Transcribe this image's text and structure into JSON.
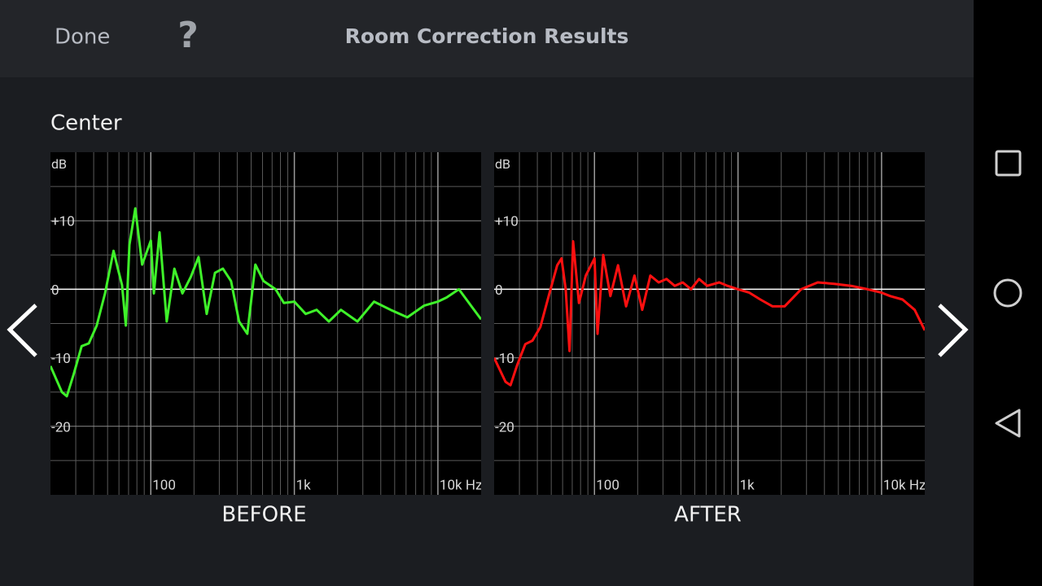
{
  "header": {
    "done": "Done",
    "help": "?",
    "title": "Room Correction Results"
  },
  "channel": "Center",
  "chart_data": [
    {
      "type": "line",
      "title": "BEFORE",
      "y_label": "dB",
      "color": "#3ff22a",
      "log_x": true,
      "xlim": [
        20,
        20000
      ],
      "ylim": [
        -30,
        20
      ],
      "xticks": [
        100,
        {
          "value": 1000,
          "label": "1k"
        },
        {
          "value": 10000,
          "label": "10k Hz"
        }
      ],
      "xminor": [
        30,
        40,
        50,
        60,
        70,
        80,
        90,
        200,
        300,
        400,
        500,
        600,
        700,
        800,
        900,
        2000,
        3000,
        4000,
        5000,
        6000,
        7000,
        8000,
        9000
      ],
      "yticks": [
        {
          "value": 10,
          "label": "+10"
        },
        0,
        -10,
        -20
      ],
      "yminor": [
        15,
        5,
        -5,
        -15,
        -25
      ],
      "x": [
        20,
        24,
        26,
        29,
        33,
        37,
        42,
        48,
        55,
        59,
        63,
        67,
        71,
        78,
        87,
        100,
        105,
        115,
        129,
        146,
        166,
        190,
        215,
        245,
        280,
        318,
        362,
        412,
        470,
        535,
        610,
        740,
        845,
        1000,
        1200,
        1430,
        1740,
        2110,
        2750,
        3590,
        4690,
        6130,
        8000,
        10000,
        11500,
        14000,
        17000,
        20000
      ],
      "values": [
        -11.2,
        -15,
        -15.6,
        -12.4,
        -8.3,
        -7.9,
        -5.3,
        -0.6,
        5.6,
        3,
        0.6,
        -5.3,
        6.5,
        11.8,
        3.6,
        7.1,
        -0.6,
        8.3,
        -4.7,
        3,
        -0.6,
        1.8,
        4.7,
        -3.6,
        2.4,
        3,
        1.2,
        -4.7,
        -6.5,
        3.6,
        1.2,
        0,
        -2,
        -1.8,
        -3.6,
        -3,
        -4.7,
        -3,
        -4.7,
        -1.8,
        -3,
        -4.1,
        -2.4,
        -1.8,
        -1.2,
        0,
        -2.4,
        -4.4
      ]
    },
    {
      "type": "line",
      "title": "AFTER",
      "y_label": "dB",
      "color": "#ff1010",
      "log_x": true,
      "xlim": [
        20,
        20000
      ],
      "ylim": [
        -30,
        20
      ],
      "xticks": [
        100,
        {
          "value": 1000,
          "label": "1k"
        },
        {
          "value": 10000,
          "label": "10k Hz"
        }
      ],
      "xminor": [
        30,
        40,
        50,
        60,
        70,
        80,
        90,
        200,
        300,
        400,
        500,
        600,
        700,
        800,
        900,
        2000,
        3000,
        4000,
        5000,
        6000,
        7000,
        8000,
        9000
      ],
      "yticks": [
        {
          "value": 10,
          "label": "+10"
        },
        0,
        -10,
        -20
      ],
      "yminor": [
        15,
        5,
        -5,
        -15,
        -25
      ],
      "x": [
        20,
        24,
        26,
        29,
        33,
        37,
        42,
        48,
        55,
        59,
        63,
        67,
        71,
        78,
        87,
        100,
        105,
        115,
        129,
        146,
        166,
        190,
        215,
        245,
        280,
        318,
        362,
        412,
        470,
        535,
        610,
        740,
        845,
        1000,
        1200,
        1430,
        1740,
        2110,
        2750,
        3590,
        4690,
        6130,
        8000,
        10000,
        11500,
        14000,
        17000,
        20000
      ],
      "values": [
        -10,
        -13.5,
        -14,
        -11,
        -8,
        -7.5,
        -5.5,
        -1,
        3.5,
        4.5,
        0,
        -9,
        7,
        -2,
        2,
        4.5,
        -6.5,
        5,
        -1,
        3.5,
        -2.5,
        2,
        -3,
        2,
        1,
        1.5,
        0.5,
        1,
        0,
        1.5,
        0.5,
        1,
        0.5,
        0,
        -0.5,
        -1.5,
        -2.5,
        -2.5,
        0,
        1,
        0.8,
        0.5,
        0,
        -0.5,
        -1,
        -1.5,
        -3,
        -6
      ]
    }
  ]
}
